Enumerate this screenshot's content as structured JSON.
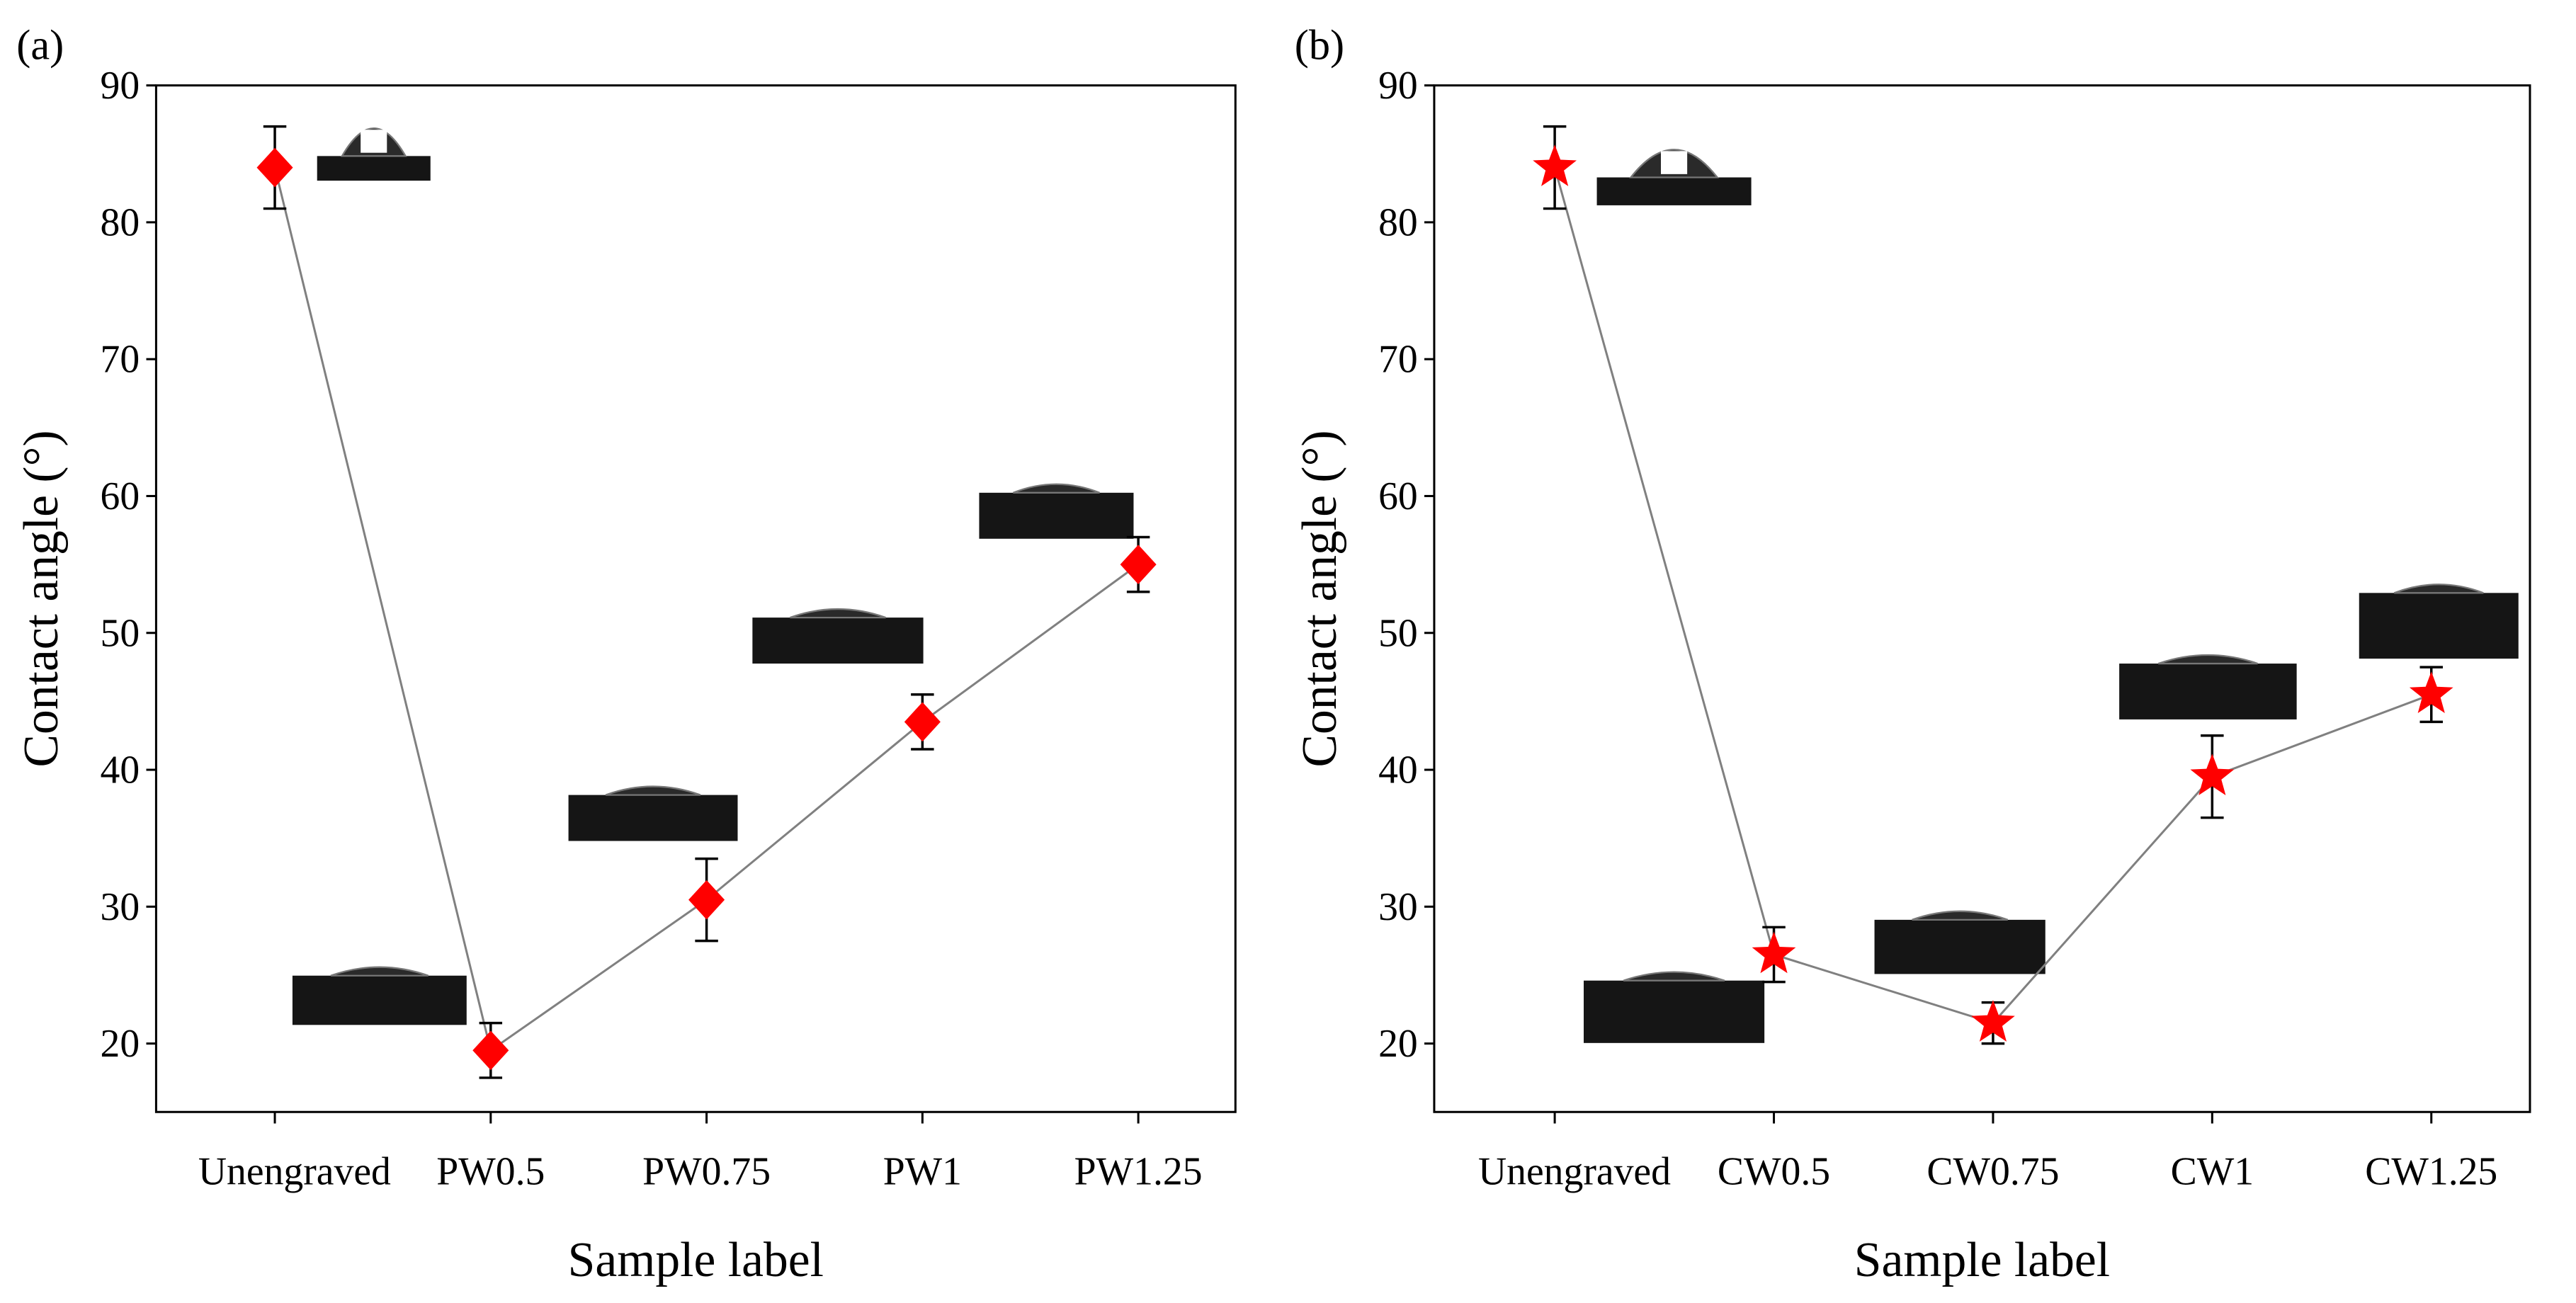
{
  "chart_data": [
    {
      "type": "line",
      "panel_label": "(a)",
      "xlabel": "Sample label",
      "ylabel": "Contact angle (°)",
      "categories": [
        "Unengraved",
        "PW0.5",
        "PW0.75",
        "PW1",
        "PW1.25"
      ],
      "values": [
        84,
        19.5,
        30.5,
        43.5,
        55
      ],
      "errors": [
        3,
        2,
        3,
        2,
        2
      ],
      "color": "#ff0000",
      "line_color": "#808080",
      "marker": "diamond",
      "ylim": [
        15,
        90
      ],
      "yticks": [
        20,
        30,
        40,
        50,
        60,
        70,
        80,
        90
      ]
    },
    {
      "type": "line",
      "panel_label": "(b)",
      "xlabel": "Sample label",
      "ylabel": "Contact angle (°)",
      "categories": [
        "Unengraved",
        "CW0.5",
        "CW0.75",
        "CW1",
        "CW1.25"
      ],
      "values": [
        84,
        26.5,
        21.5,
        39.5,
        45.5
      ],
      "errors": [
        3,
        2,
        1.5,
        3,
        2
      ],
      "color": "#ff0000",
      "line_color": "#808080",
      "marker": "star",
      "ylim": [
        15,
        90
      ],
      "yticks": [
        20,
        30,
        40,
        50,
        60,
        70,
        80,
        90
      ]
    }
  ]
}
